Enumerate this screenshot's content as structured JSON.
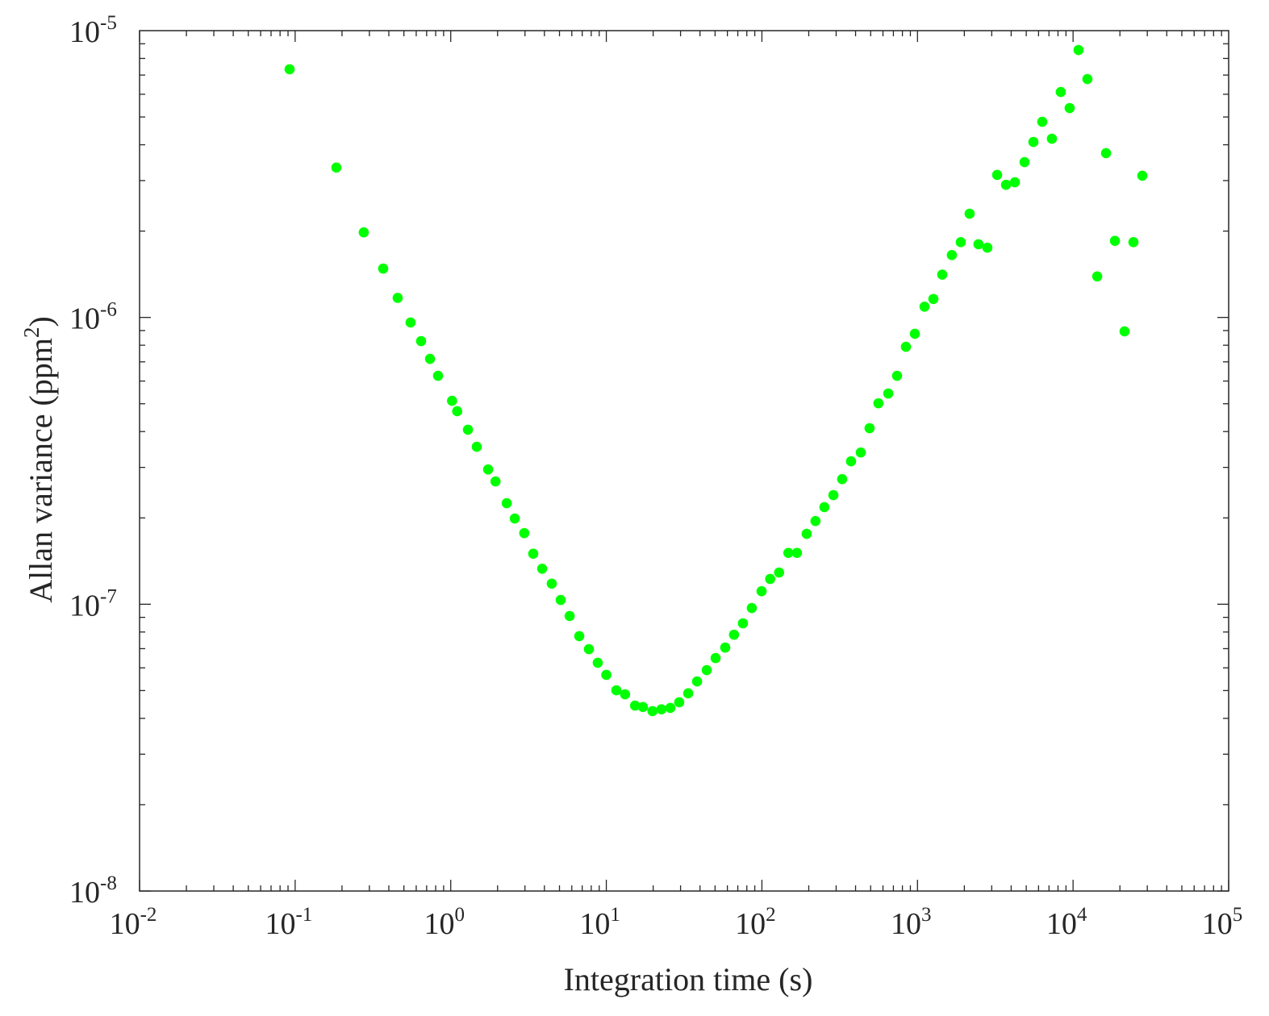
{
  "chart_data": {
    "type": "scatter",
    "title": "",
    "xlabel": "Integration time (s)",
    "ylabel": "Allan variance (ppm",
    "ylabel_sup": "2",
    "ylabel_end": ")",
    "xscale": "log",
    "yscale": "log",
    "xlim": [
      0.01,
      100000
    ],
    "ylim": [
      1e-08,
      1e-05
    ],
    "x_ticks": [
      {
        "base": "10",
        "exp": "-2"
      },
      {
        "base": "10",
        "exp": "-1"
      },
      {
        "base": "10",
        "exp": "0"
      },
      {
        "base": "10",
        "exp": "1"
      },
      {
        "base": "10",
        "exp": "2"
      },
      {
        "base": "10",
        "exp": "3"
      },
      {
        "base": "10",
        "exp": "4"
      },
      {
        "base": "10",
        "exp": "5"
      }
    ],
    "y_ticks": [
      {
        "base": "10",
        "exp": "-8"
      },
      {
        "base": "10",
        "exp": "-7"
      },
      {
        "base": "10",
        "exp": "-6"
      },
      {
        "base": "10",
        "exp": "-5"
      }
    ],
    "grid": false,
    "marker_color": "#00ff00",
    "series": [
      {
        "name": "Allan variance",
        "x": [
          0.0921,
          0.184,
          0.276,
          0.368,
          0.456,
          0.552,
          0.645,
          0.736,
          0.829,
          1.02,
          1.1,
          1.29,
          1.47,
          1.74,
          1.94,
          2.29,
          2.58,
          2.97,
          3.39,
          3.87,
          4.46,
          5.09,
          5.81,
          6.7,
          7.73,
          8.81,
          10.0,
          11.6,
          13.2,
          15.3,
          17.2,
          19.8,
          22.6,
          25.8,
          29.4,
          33.6,
          38.3,
          44.2,
          50.4,
          58.1,
          66.2,
          75.5,
          86.1,
          99.5,
          113,
          129,
          148,
          168,
          194,
          221,
          252,
          288,
          328,
          374,
          432,
          492,
          561,
          649,
          739,
          843,
          962,
          1110,
          1265,
          1442,
          1663,
          1897,
          2163,
          2466,
          2812,
          3250,
          3707,
          4227,
          4875,
          5559,
          6339,
          7311,
          8337,
          9506,
          10840,
          12360,
          14290,
          16290,
          18580,
          21430,
          24430,
          27860
        ],
        "y": [
          7.33e-06,
          3.33e-06,
          1.98e-06,
          1.48e-06,
          1.17e-06,
          9.6e-07,
          8.27e-07,
          7.17e-07,
          6.26e-07,
          5.12e-07,
          4.71e-07,
          4.06e-07,
          3.54e-07,
          2.95e-07,
          2.68e-07,
          2.25e-07,
          1.99e-07,
          1.77e-07,
          1.5e-07,
          1.33e-07,
          1.18e-07,
          1.035e-07,
          9.1e-08,
          7.74e-08,
          6.97e-08,
          6.25e-08,
          5.67e-08,
          5.01e-08,
          4.85e-08,
          4.43e-08,
          4.38e-08,
          4.24e-08,
          4.3e-08,
          4.35e-08,
          4.55e-08,
          4.89e-08,
          5.38e-08,
          5.89e-08,
          6.49e-08,
          7.06e-08,
          7.83e-08,
          8.58e-08,
          9.7e-08,
          1.11e-07,
          1.225e-07,
          1.29e-07,
          1.51e-07,
          1.51e-07,
          1.76e-07,
          1.95e-07,
          2.18e-07,
          2.4e-07,
          2.73e-07,
          3.15e-07,
          3.38e-07,
          4.11e-07,
          5.02e-07,
          5.43e-07,
          6.26e-07,
          7.9e-07,
          8.77e-07,
          1.09e-06,
          1.16e-06,
          1.41e-06,
          1.65e-06,
          1.83e-06,
          2.3e-06,
          1.8e-06,
          1.75e-06,
          3.14e-06,
          2.9e-06,
          2.96e-06,
          3.48e-06,
          4.09e-06,
          4.81e-06,
          4.2e-06,
          6.11e-06,
          5.37e-06,
          8.56e-06,
          6.78e-06,
          1.39e-06,
          3.74e-06,
          1.85e-06,
          8.94e-07,
          1.83e-06,
          3.12e-06
        ]
      }
    ]
  }
}
